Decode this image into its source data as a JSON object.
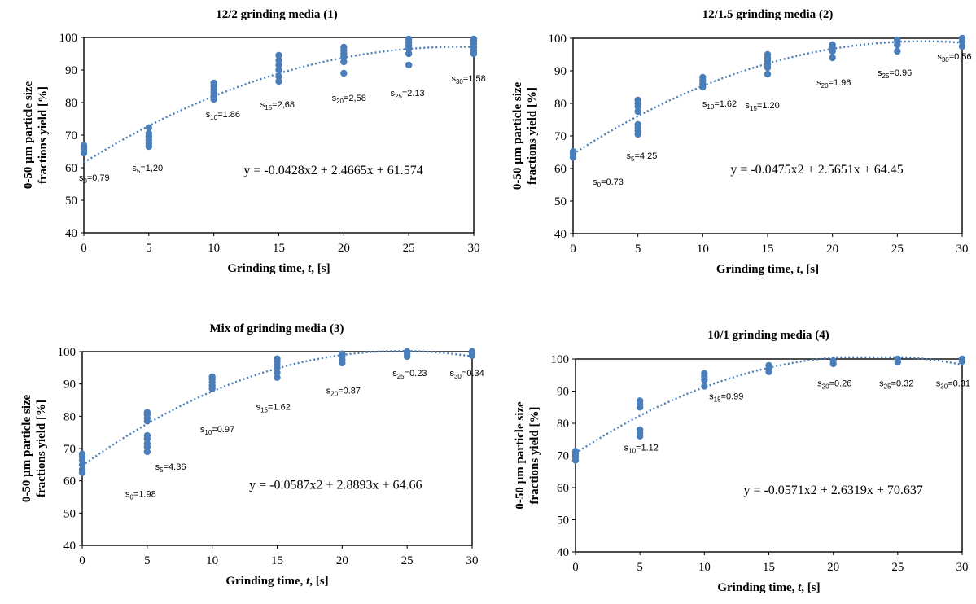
{
  "colors": {
    "points": "#4a7ebb",
    "trendline": "#4a7ebb"
  },
  "chart_data": [
    {
      "type": "scatter",
      "title": "12/2 grinding media (1)",
      "xlabel_main": "Grinding time, ",
      "xlabel_var": "t",
      "xlabel_end": ", [s]",
      "ylabel_line1": "0-50 µm particle size",
      "ylabel_line2": "fractions yield [%]",
      "xlim": [
        0,
        30
      ],
      "ylim": [
        40,
        100
      ],
      "xticks": [
        "0",
        "5",
        "10",
        "15",
        "20",
        "25",
        "30"
      ],
      "yticks": [
        "40",
        "50",
        "60",
        "70",
        "80",
        "90",
        "100"
      ],
      "points": [
        {
          "x": 0,
          "y": [
            64.5,
            65.2,
            65.8,
            66.3,
            66.9
          ]
        },
        {
          "x": 5,
          "y": [
            66.5,
            67.5,
            68.5,
            69.5,
            70.5,
            72.3
          ]
        },
        {
          "x": 10,
          "y": [
            81,
            82,
            83,
            84,
            85,
            86
          ]
        },
        {
          "x": 15,
          "y": [
            86.5,
            88,
            90,
            91.5,
            93,
            94.5
          ]
        },
        {
          "x": 20,
          "y": [
            89,
            92.5,
            94,
            95,
            96,
            97
          ]
        },
        {
          "x": 25,
          "y": [
            91.5,
            95,
            96.5,
            97.5,
            98.5,
            99.5
          ]
        },
        {
          "x": 30,
          "y": [
            95,
            96,
            97,
            98,
            99,
            99.5
          ]
        }
      ],
      "trend": {
        "a": -0.0428,
        "b": 2.4665,
        "c": 61.574
      },
      "equation": "y = -0.0428x2 + 2.4665x + 61.574",
      "annotations": [
        {
          "s": "s",
          "sub": "0",
          "val": "=0,79",
          "x": 0.8,
          "y": 56
        },
        {
          "s": "s",
          "sub": "5",
          "val": "=1,20",
          "x": 4.9,
          "y": 59
        },
        {
          "s": "s",
          "sub": "10",
          "val": "=1.86",
          "x": 10.7,
          "y": 75.5
        },
        {
          "s": "s",
          "sub": "15",
          "val": "=2,68",
          "x": 14.9,
          "y": 78.5
        },
        {
          "s": "s",
          "sub": "20",
          "val": "=2,58",
          "x": 20.4,
          "y": 80.5
        },
        {
          "s": "s",
          "sub": "25",
          "val": "=2.13",
          "x": 24.9,
          "y": 82
        },
        {
          "s": "s",
          "sub": "30",
          "val": "=1.58",
          "x": 29.6,
          "y": 86.5
        }
      ]
    },
    {
      "type": "scatter",
      "title": "12/1.5 grinding media (2)",
      "xlabel_main": "Grinding time, ",
      "xlabel_var": "t",
      "xlabel_end": ", [s]",
      "ylabel_line1": "0-50 µm particle size",
      "ylabel_line2": "fractions yield [%]",
      "xlim": [
        0,
        30
      ],
      "ylim": [
        40,
        100
      ],
      "xticks": [
        "0",
        "5",
        "10",
        "15",
        "20",
        "25",
        "30"
      ],
      "yticks": [
        "40",
        "50",
        "60",
        "70",
        "80",
        "90",
        "100"
      ],
      "points": [
        {
          "x": 0,
          "y": [
            63.5,
            64.5,
            65.2
          ]
        },
        {
          "x": 5,
          "y": [
            70.5,
            71.5,
            72.5,
            73.5,
            77.5,
            79,
            80,
            81
          ]
        },
        {
          "x": 10,
          "y": [
            85,
            86,
            87,
            88
          ]
        },
        {
          "x": 15,
          "y": [
            89,
            91,
            92,
            93,
            94,
            95
          ]
        },
        {
          "x": 20,
          "y": [
            94,
            96,
            97,
            98
          ]
        },
        {
          "x": 25,
          "y": [
            96,
            98,
            99,
            99.5
          ]
        },
        {
          "x": 30,
          "y": [
            97.5,
            99,
            100
          ]
        }
      ],
      "trend": {
        "a": -0.0475,
        "b": 2.5651,
        "c": 64.45
      },
      "equation": "y = -0.0475x2 + 2.5651x + 64.45",
      "annotations": [
        {
          "s": "s",
          "sub": "0",
          "val": "=0.73",
          "x": 2.7,
          "y": 55
        },
        {
          "s": "s",
          "sub": "5",
          "val": "=4.25",
          "x": 5.3,
          "y": 63
        },
        {
          "s": "s",
          "sub": "10",
          "val": "=1.62",
          "x": 11.3,
          "y": 79
        },
        {
          "s": "s",
          "sub": "15",
          "val": "=1.20",
          "x": 14.6,
          "y": 78.5
        },
        {
          "s": "s",
          "sub": "20",
          "val": "=1.96",
          "x": 20.1,
          "y": 85.5
        },
        {
          "s": "s",
          "sub": "25",
          "val": "=0.96",
          "x": 24.8,
          "y": 88.5
        },
        {
          "s": "s",
          "sub": "30",
          "val": "=0.56",
          "x": 29.4,
          "y": 93.5
        }
      ]
    },
    {
      "type": "scatter",
      "title": "Mix of grinding media (3)",
      "xlabel_main": "Grinding time, ",
      "xlabel_var": "t",
      "xlabel_end": ", [s]",
      "ylabel_line1": "0-50 µm particle size",
      "ylabel_line2": "fractions yield [%]",
      "xlim": [
        0,
        30
      ],
      "ylim": [
        40,
        100
      ],
      "xticks": [
        "0",
        "5",
        "10",
        "15",
        "20",
        "25",
        "30"
      ],
      "yticks": [
        "40",
        "50",
        "60",
        "70",
        "80",
        "90",
        "100"
      ],
      "points": [
        {
          "x": 0,
          "y": [
            62.5,
            63.5,
            65,
            66.5,
            67.5,
            68.3
          ]
        },
        {
          "x": 5,
          "y": [
            69,
            70.5,
            71.5,
            73,
            74,
            78.5,
            79.5,
            80.5,
            81.2
          ]
        },
        {
          "x": 10,
          "y": [
            88.5,
            89.5,
            90.5,
            91.5,
            92.2
          ]
        },
        {
          "x": 15,
          "y": [
            92,
            93.5,
            95,
            96,
            97,
            97.8
          ]
        },
        {
          "x": 20,
          "y": [
            96.5,
            97.5,
            98.5,
            99.3
          ]
        },
        {
          "x": 25,
          "y": [
            98.5,
            99.3,
            100
          ]
        },
        {
          "x": 30,
          "y": [
            98.8,
            99.5,
            100
          ]
        }
      ],
      "trend": {
        "a": -0.0587,
        "b": 2.8893,
        "c": 64.66
      },
      "equation": "y = -0.0587x2 + 2.8893x + 64.66",
      "annotations": [
        {
          "s": "s",
          "sub": "0",
          "val": "=1.98",
          "x": 4.5,
          "y": 55
        },
        {
          "s": "s",
          "sub": "5",
          "val": "=4.36",
          "x": 6.8,
          "y": 63.5
        },
        {
          "s": "s",
          "sub": "10",
          "val": "=0.97",
          "x": 10.4,
          "y": 75
        },
        {
          "s": "s",
          "sub": "15",
          "val": "=1.62",
          "x": 14.7,
          "y": 82
        },
        {
          "s": "s",
          "sub": "20",
          "val": "=0.87",
          "x": 20.1,
          "y": 87
        },
        {
          "s": "s",
          "sub": "25",
          "val": "=0.23",
          "x": 25.2,
          "y": 92.5
        },
        {
          "s": "s",
          "sub": "30",
          "val": "=0.34",
          "x": 29.6,
          "y": 92.5
        }
      ]
    },
    {
      "type": "scatter",
      "title": "10/1 grinding media (4)",
      "xlabel_main": "Grinding time, ",
      "xlabel_var": "t",
      "xlabel_end": ", [s]",
      "ylabel_line1": "0-50 µm particle size",
      "ylabel_line2": "fractions yield [%]",
      "xlim": [
        0,
        30
      ],
      "ylim": [
        40,
        100
      ],
      "xticks": [
        "0",
        "5",
        "10",
        "15",
        "20",
        "25",
        "30"
      ],
      "yticks": [
        "40",
        "50",
        "60",
        "70",
        "80",
        "90",
        "100"
      ],
      "points": [
        {
          "x": 0,
          "y": [
            68.5,
            69.5,
            70.5,
            71.3
          ]
        },
        {
          "x": 5,
          "y": [
            76,
            77,
            78,
            85,
            86,
            87
          ]
        },
        {
          "x": 10,
          "y": [
            91.5,
            93.5,
            94.5,
            95.5
          ]
        },
        {
          "x": 15,
          "y": [
            96,
            97,
            98
          ]
        },
        {
          "x": 20,
          "y": [
            98.5,
            99.5
          ]
        },
        {
          "x": 25,
          "y": [
            99,
            100
          ]
        },
        {
          "x": 30,
          "y": [
            99.3,
            100
          ]
        }
      ],
      "trend": {
        "a": -0.0571,
        "b": 2.6319,
        "c": 70.637
      },
      "equation": "y = -0.0571x2 + 2.6319x + 70.637",
      "annotations": [
        {
          "s": "s",
          "sub": "10",
          "val": "=1.12",
          "x": 5.1,
          "y": 71.5
        },
        {
          "s": "s",
          "sub": "15",
          "val": "=0.99",
          "x": 11.7,
          "y": 87.5
        },
        {
          "s": "s",
          "sub": "20",
          "val": "=0.26",
          "x": 20.1,
          "y": 91.5
        },
        {
          "s": "s",
          "sub": "25",
          "val": "=0.32",
          "x": 24.9,
          "y": 91.5
        },
        {
          "s": "s",
          "sub": "30",
          "val": "=0.31",
          "x": 29.3,
          "y": 91.5
        }
      ]
    }
  ]
}
